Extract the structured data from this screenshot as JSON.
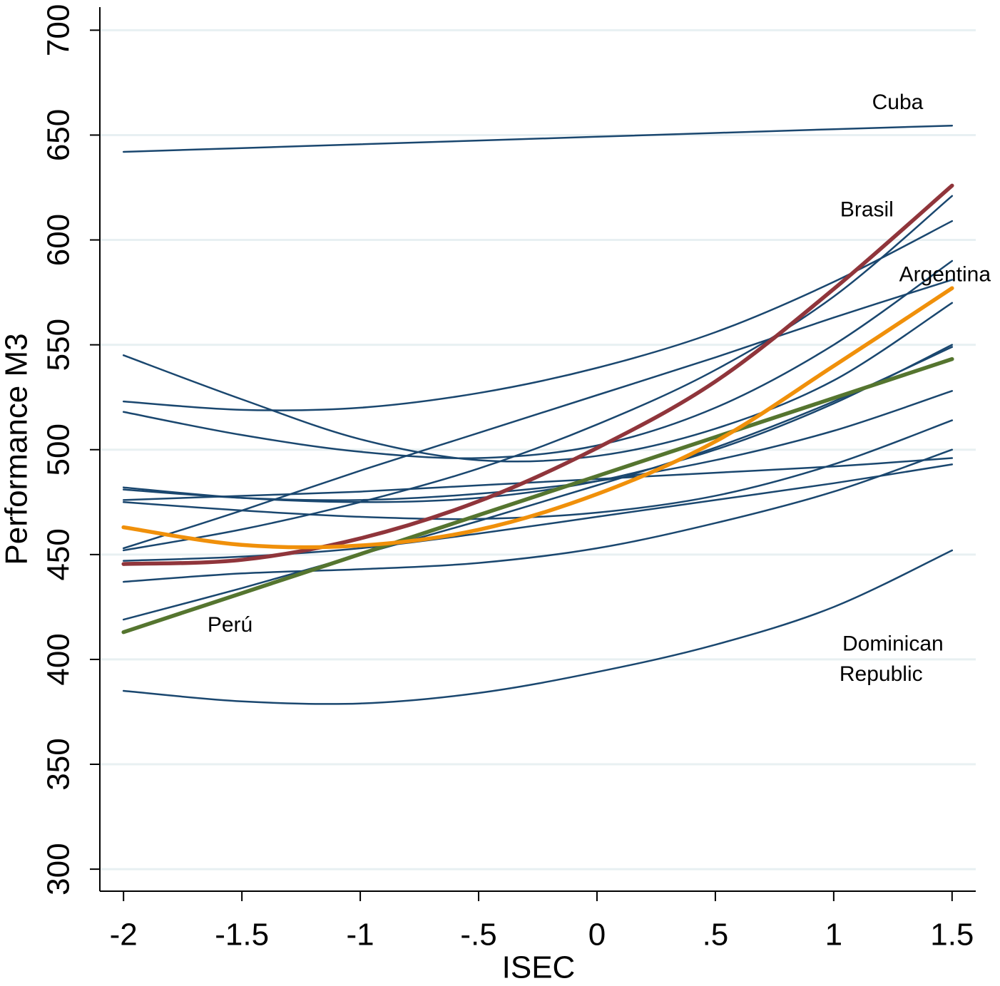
{
  "chart_data": {
    "type": "line",
    "x_label": "ISEC",
    "y_label": "Performance M3",
    "x": [
      -2,
      -1.5,
      -1,
      -0.5,
      0,
      0.5,
      1,
      1.5
    ],
    "xlim": [
      -2.1,
      1.6
    ],
    "xticks": [
      -2,
      -1.5,
      -1,
      {
        "value": -0.5,
        "label": "-.5"
      },
      0,
      {
        "value": 0.5,
        "label": ".5"
      },
      1,
      1.5
    ],
    "ylim": [
      289.5,
      711
    ],
    "yticks": [
      300,
      350,
      400,
      450,
      500,
      550,
      600,
      650,
      700
    ],
    "grid": true,
    "series": [
      {
        "color": "#1a476f",
        "values": [
          642,
          643.8,
          645.6,
          647.4,
          649.2,
          651,
          652.8,
          654.5
        ]
      },
      {
        "color": "#1a476f",
        "values": [
          385,
          380,
          379,
          384,
          394,
          407,
          425,
          452
        ]
      },
      {
        "color": "#1a476f",
        "values": [
          523,
          519,
          520,
          527,
          539,
          556,
          580,
          609
        ]
      },
      {
        "color": "#1a476f",
        "values": [
          453,
          471,
          490,
          508,
          526,
          544,
          563,
          581
        ]
      },
      {
        "color": "#1a476f",
        "values": [
          452,
          462,
          475,
          491,
          512,
          538,
          573,
          621
        ]
      },
      {
        "color": "#1a476f",
        "values": [
          545,
          524,
          505,
          495,
          497,
          510,
          533,
          570
        ]
      },
      {
        "color": "#1a476f",
        "values": [
          518,
          507,
          499,
          496,
          502,
          520,
          550,
          590
        ]
      },
      {
        "color": "#1a476f",
        "values": [
          482,
          477,
          475,
          477,
          485,
          500,
          522,
          550
        ]
      },
      {
        "color": "#1a476f",
        "values": [
          476,
          478,
          480,
          483,
          486,
          489,
          492,
          496
        ]
      },
      {
        "color": "#1a476f",
        "values": [
          475,
          471,
          468,
          467,
          470,
          478,
          493,
          514
        ]
      },
      {
        "color": "#1a476f",
        "values": [
          481,
          477,
          476,
          479,
          485,
          495,
          509,
          528
        ]
      },
      {
        "color": "#1a476f",
        "values": [
          437,
          441,
          443,
          446,
          453,
          465,
          480,
          500
        ]
      },
      {
        "color": "#1a476f",
        "values": [
          447,
          449,
          453,
          460,
          468,
          476,
          484,
          493
        ]
      },
      {
        "color": "#1a476f",
        "values": [
          419,
          434,
          450,
          466,
          483,
          501,
          523,
          549
        ]
      },
      {
        "color": "#90353b",
        "values": [
          445.5,
          447.5,
          457.7,
          475.4,
          500.8,
          532.5,
          576.6,
          625.9
        ]
      },
      {
        "color": "#55752f",
        "values": [
          413,
          431.6,
          450.2,
          468.8,
          487.4,
          506,
          524.6,
          543.2
        ]
      },
      {
        "color": "#f0900a",
        "values": [
          463,
          454.6,
          454.3,
          461.8,
          478.8,
          503.9,
          539.9,
          577
        ]
      }
    ],
    "annotations": [
      {
        "text": "Cuba",
        "x": 1.27,
        "y": 665
      },
      {
        "text": "Brasil",
        "x": 1.14,
        "y": 614
      },
      {
        "text": "Argentina",
        "x": 1.47,
        "y": 583
      },
      {
        "text": "Perú",
        "x": -1.55,
        "y": 416
      },
      {
        "text": "Dominican",
        "x": 1.25,
        "y": 407
      },
      {
        "text": "Republic",
        "x": 1.2,
        "y": 392.5
      }
    ]
  }
}
